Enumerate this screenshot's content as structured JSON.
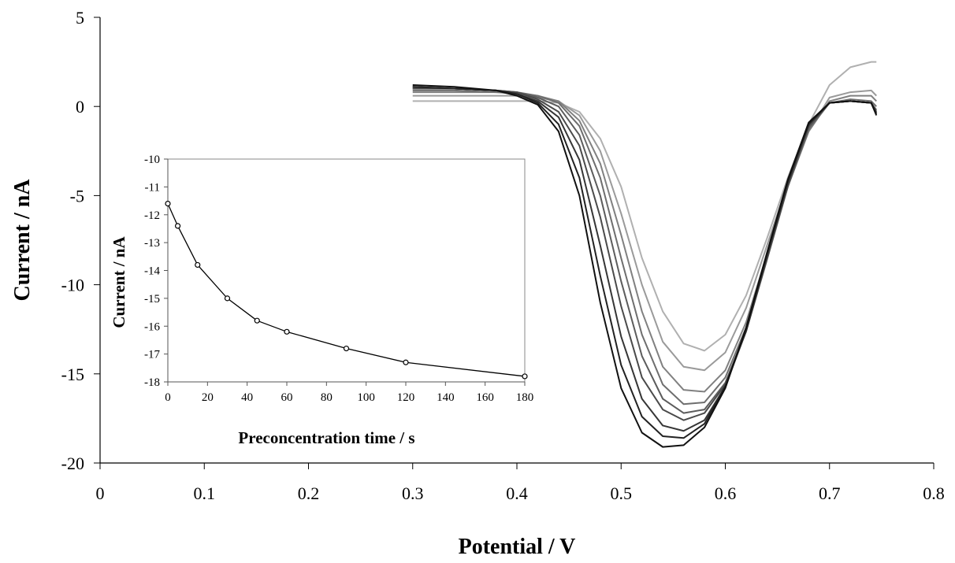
{
  "chart_data": [
    {
      "type": "line",
      "xlabel": "Potential / V",
      "ylabel": "Current / nA",
      "xlim": [
        0,
        0.8
      ],
      "ylim": [
        -20,
        5
      ],
      "x_ticks": [
        "0",
        "0.1",
        "0.2",
        "0.3",
        "0.4",
        "0.5",
        "0.6",
        "0.7",
        "0.8"
      ],
      "y_ticks": [
        "5",
        "0",
        "-5",
        "-10",
        "-15",
        "-20"
      ],
      "grid": false,
      "legend": "none",
      "x": [
        0.3,
        0.34,
        0.38,
        0.4,
        0.42,
        0.44,
        0.46,
        0.48,
        0.5,
        0.52,
        0.54,
        0.56,
        0.58,
        0.6,
        0.62,
        0.64,
        0.66,
        0.68,
        0.7,
        0.72,
        0.74,
        0.745
      ],
      "series": [
        {
          "color": "#b0b0b0",
          "values": [
            0.3,
            0.3,
            0.3,
            0.3,
            0.3,
            0.2,
            -0.3,
            -1.8,
            -4.5,
            -8.5,
            -11.5,
            -13.3,
            -13.7,
            -12.8,
            -10.6,
            -7.4,
            -4.0,
            -1.0,
            1.2,
            2.2,
            2.5,
            2.5
          ]
        },
        {
          "color": "#9a9a9a",
          "values": [
            0.6,
            0.6,
            0.6,
            0.6,
            0.5,
            0.3,
            -0.5,
            -2.5,
            -6.0,
            -10.0,
            -13.2,
            -14.6,
            -14.8,
            -13.8,
            -11.3,
            -7.8,
            -4.3,
            -1.4,
            0.5,
            0.8,
            0.9,
            0.6
          ]
        },
        {
          "color": "#808080",
          "values": [
            0.8,
            0.8,
            0.8,
            0.7,
            0.6,
            0.3,
            -0.8,
            -3.2,
            -7.2,
            -11.5,
            -14.6,
            -15.9,
            -16.0,
            -14.8,
            -12.1,
            -8.3,
            -4.5,
            -1.4,
            0.3,
            0.6,
            0.6,
            0.3
          ]
        },
        {
          "color": "#6e6e6e",
          "values": [
            0.9,
            0.9,
            0.8,
            0.8,
            0.6,
            0.2,
            -1.1,
            -4.0,
            -8.5,
            -12.8,
            -15.6,
            -16.7,
            -16.6,
            -15.2,
            -12.4,
            -8.5,
            -4.5,
            -1.3,
            0.2,
            0.4,
            0.3,
            0.0
          ]
        },
        {
          "color": "#5c5c5c",
          "values": [
            1.0,
            1.0,
            0.9,
            0.8,
            0.5,
            0.0,
            -1.6,
            -5.0,
            -9.8,
            -14.0,
            -16.4,
            -17.2,
            -17.0,
            -15.5,
            -12.6,
            -8.6,
            -4.5,
            -1.2,
            0.2,
            0.3,
            0.2,
            -0.2
          ]
        },
        {
          "color": "#4a4a4a",
          "values": [
            1.0,
            1.0,
            0.9,
            0.8,
            0.4,
            -0.3,
            -2.2,
            -6.2,
            -11.2,
            -15.2,
            -17.0,
            -17.6,
            -17.2,
            -15.6,
            -12.6,
            -8.5,
            -4.4,
            -1.1,
            0.2,
            0.3,
            0.2,
            -0.3
          ]
        },
        {
          "color": "#363636",
          "values": [
            1.1,
            1.0,
            0.9,
            0.7,
            0.3,
            -0.6,
            -3.0,
            -7.8,
            -12.9,
            -16.4,
            -17.9,
            -18.2,
            -17.6,
            -15.7,
            -12.6,
            -8.4,
            -4.3,
            -1.0,
            0.2,
            0.3,
            0.2,
            -0.4
          ]
        },
        {
          "color": "#222222",
          "values": [
            1.1,
            1.0,
            0.9,
            0.7,
            0.2,
            -1.0,
            -4.0,
            -9.5,
            -14.5,
            -17.4,
            -18.5,
            -18.6,
            -17.8,
            -15.7,
            -12.5,
            -8.3,
            -4.2,
            -1.0,
            0.2,
            0.3,
            0.2,
            -0.4
          ]
        },
        {
          "color": "#111111",
          "values": [
            1.2,
            1.1,
            0.9,
            0.6,
            0.1,
            -1.4,
            -5.0,
            -11.0,
            -15.8,
            -18.3,
            -19.1,
            -19.0,
            -18.0,
            -15.8,
            -12.4,
            -8.2,
            -4.1,
            -0.9,
            0.2,
            0.3,
            0.2,
            -0.5
          ]
        }
      ]
    },
    {
      "type": "line",
      "xlabel": "Preconcentration time / s",
      "ylabel": "Current / nA",
      "xlim": [
        0,
        180
      ],
      "ylim": [
        -18,
        -10
      ],
      "x_ticks": [
        "0",
        "20",
        "40",
        "60",
        "80",
        "100",
        "120",
        "140",
        "160",
        "180"
      ],
      "y_ticks": [
        "-10",
        "-11",
        "-12",
        "-13",
        "-14",
        "-15",
        "-16",
        "-17",
        "-18"
      ],
      "grid": false,
      "legend": "none",
      "x": [
        0,
        5,
        15,
        30,
        45,
        60,
        90,
        120,
        180
      ],
      "series": [
        {
          "color": "#000000",
          "values": [
            -11.6,
            -12.4,
            -13.8,
            -15.0,
            -15.8,
            -16.2,
            -16.8,
            -17.3,
            -17.8
          ]
        }
      ]
    }
  ]
}
